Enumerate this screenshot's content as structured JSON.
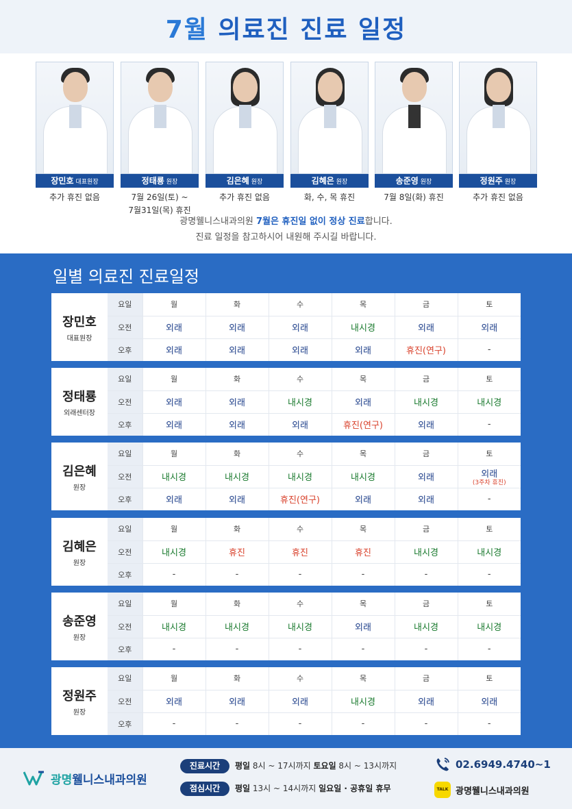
{
  "header": {
    "title_month": "7월",
    "title_rest": " 의료진 진료 일정"
  },
  "doctors": [
    {
      "name": "장민호",
      "role": "대표원장",
      "note_lines": [
        "추가 휴진 없음"
      ]
    },
    {
      "name": "정태룡",
      "role": "원장",
      "note_lines": [
        "7월 26일(토) ~",
        "7월31일(목) 휴진"
      ]
    },
    {
      "name": "김은혜",
      "role": "원장",
      "note_lines": [
        "추가 휴진 없음"
      ]
    },
    {
      "name": "김혜은",
      "role": "원장",
      "note_lines": [
        "화, 수, 목 휴진"
      ]
    },
    {
      "name": "송준영",
      "role": "원장",
      "note_lines": [
        "7월 8일(화) 휴진"
      ]
    },
    {
      "name": "정원주",
      "role": "원장",
      "note_lines": [
        "추가 휴진 없음"
      ]
    }
  ],
  "intro": {
    "line1_pre": "광명웰니스내과의원 ",
    "line1_hl": "7월은 휴진일 없이 정상 진료",
    "line1_post": "합니다.",
    "line2": "진료 일정을 참고하시어 내원해 주시길 바랍니다."
  },
  "schedule": {
    "section_title": "일별 의료진 진료일정",
    "row_labels": [
      "요일",
      "오전",
      "오후"
    ],
    "days": [
      "월",
      "화",
      "수",
      "목",
      "금",
      "토"
    ],
    "doctors": [
      {
        "name": "장민호",
        "role": "대표원장",
        "am": [
          "외래",
          "외래",
          "외래",
          "내시경",
          "외래",
          "외래"
        ],
        "pm": [
          "외래",
          "외래",
          "외래",
          "외래",
          "휴진(연구)",
          "-"
        ]
      },
      {
        "name": "정태룡",
        "role": "외래센터장",
        "am": [
          "외래",
          "외래",
          "내시경",
          "외래",
          "내시경",
          "내시경"
        ],
        "pm": [
          "외래",
          "외래",
          "외래",
          "휴진(연구)",
          "외래",
          "-"
        ]
      },
      {
        "name": "김은혜",
        "role": "원장",
        "am": [
          "내시경",
          "내시경",
          "내시경",
          "내시경",
          "외래",
          "외래"
        ],
        "am_sat_note": "(3주차 휴진)",
        "pm": [
          "외래",
          "외래",
          "휴진(연구)",
          "외래",
          "외래",
          "-"
        ]
      },
      {
        "name": "김혜은",
        "role": "원장",
        "am": [
          "내시경",
          "휴진",
          "휴진",
          "휴진",
          "내시경",
          "내시경"
        ],
        "pm": [
          "-",
          "-",
          "-",
          "-",
          "-",
          "-"
        ]
      },
      {
        "name": "송준영",
        "role": "원장",
        "am": [
          "내시경",
          "내시경",
          "내시경",
          "외래",
          "내시경",
          "내시경"
        ],
        "pm": [
          "-",
          "-",
          "-",
          "-",
          "-",
          "-"
        ]
      },
      {
        "name": "정원주",
        "role": "원장",
        "am": [
          "외래",
          "외래",
          "외래",
          "내시경",
          "외래",
          "외래"
        ],
        "pm": [
          "-",
          "-",
          "-",
          "-",
          "-",
          "-"
        ]
      }
    ]
  },
  "footer": {
    "logo_part1": "광명",
    "logo_part2": "웰니스내과의원",
    "hours_label": "진료시간",
    "hours_weekday_label": "평일",
    "hours_weekday": " 8시 ~ 17시까지 ",
    "hours_sat_label": "토요일",
    "hours_sat": " 8시 ~ 13시까지",
    "lunch_label": "점심시간",
    "lunch_weekday_label": "평일",
    "lunch_weekday": " 13시 ~ 14시까지 ",
    "closed": "일요일 · 공휴일 휴무",
    "phone": "02.6949.4740~1",
    "kakao_badge": "TALK",
    "kakao_name": "광명웰니스내과의원"
  },
  "colors": {
    "primary": "#1b4f9c",
    "section_bg": "#2a6cc4",
    "outpatient": "#1e3f8a",
    "endoscopy": "#1a7a2e",
    "off": "#d9412b"
  }
}
